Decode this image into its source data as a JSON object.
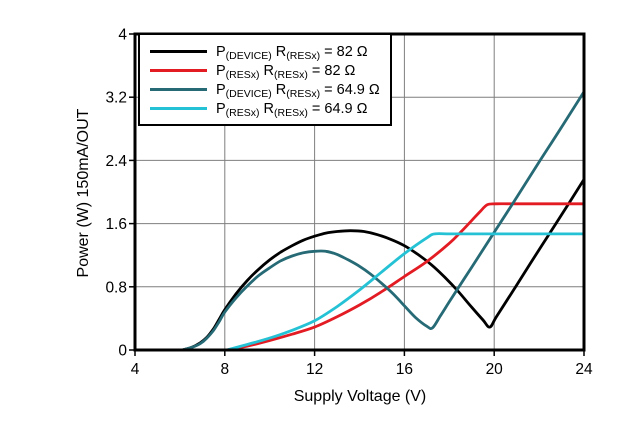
{
  "figure": {
    "background": "#ffffff",
    "frame_color": "#000000",
    "grid_color": "#7f7f7f"
  },
  "chart_data": {
    "type": "line",
    "title": "",
    "xlabel": "Supply Voltage (V)",
    "ylabel": "Power (W) 150mA/OUT",
    "xlim": [
      4,
      24
    ],
    "ylim": [
      0,
      4
    ],
    "x_ticks": [
      4,
      8,
      12,
      16,
      20,
      24
    ],
    "y_ticks": [
      0,
      0.8,
      1.6,
      2.4,
      3.2,
      4
    ],
    "x_tick_labels": [
      "4",
      "8",
      "12",
      "16",
      "20",
      "24"
    ],
    "y_tick_labels": [
      "0",
      "0.8",
      "1.6",
      "2.4",
      "3.2",
      "4"
    ],
    "grid": true,
    "legend_position": "top-left",
    "series": [
      {
        "name": "P(DEVICE) R(RESx) = 82 Ω",
        "color": "#000000",
        "label_parts": [
          {
            "t": "P"
          },
          {
            "s": "(DEVICE)"
          },
          {
            "t": " R"
          },
          {
            "s": "(RESx)"
          },
          {
            "t": " = 82 Ω"
          }
        ],
        "points": [
          [
            6.1,
            0
          ],
          [
            6.5,
            0.03
          ],
          [
            6.9,
            0.09
          ],
          [
            7.2,
            0.16
          ],
          [
            7.5,
            0.27
          ],
          [
            7.75,
            0.39
          ],
          [
            8,
            0.51
          ],
          [
            8.5,
            0.71
          ],
          [
            9,
            0.88
          ],
          [
            9.5,
            1.02
          ],
          [
            10,
            1.14
          ],
          [
            10.5,
            1.24
          ],
          [
            11,
            1.32
          ],
          [
            11.5,
            1.39
          ],
          [
            12,
            1.44
          ],
          [
            12.5,
            1.48
          ],
          [
            13,
            1.5
          ],
          [
            13.6,
            1.51
          ],
          [
            14.2,
            1.5
          ],
          [
            14.8,
            1.46
          ],
          [
            15.4,
            1.4
          ],
          [
            16,
            1.32
          ],
          [
            16.6,
            1.21
          ],
          [
            17.2,
            1.08
          ],
          [
            17.8,
            0.92
          ],
          [
            18.4,
            0.74
          ],
          [
            19,
            0.54
          ],
          [
            19.5,
            0.38
          ],
          [
            19.8,
            0.29
          ],
          [
            20.1,
            0.42
          ],
          [
            21,
            0.82
          ],
          [
            22,
            1.27
          ],
          [
            23,
            1.71
          ],
          [
            24,
            2.16
          ]
        ]
      },
      {
        "name": "P(RESx) R(RESx) = 82 Ω",
        "color": "#e31b23",
        "label_parts": [
          {
            "t": "P"
          },
          {
            "s": "(RESx)"
          },
          {
            "t": " R"
          },
          {
            "s": "(RESx)"
          },
          {
            "t": " = 82 Ω"
          }
        ],
        "points": [
          [
            8.1,
            0
          ],
          [
            9,
            0.05
          ],
          [
            10,
            0.12
          ],
          [
            11,
            0.2
          ],
          [
            12,
            0.29
          ],
          [
            13,
            0.42
          ],
          [
            14,
            0.57
          ],
          [
            15,
            0.74
          ],
          [
            16,
            0.93
          ],
          [
            17,
            1.12
          ],
          [
            18,
            1.35
          ],
          [
            18.5,
            1.49
          ],
          [
            19,
            1.64
          ],
          [
            19.4,
            1.76
          ],
          [
            19.7,
            1.84
          ],
          [
            20.1,
            1.85
          ],
          [
            21,
            1.85
          ],
          [
            24,
            1.85
          ]
        ]
      },
      {
        "name": "P(DEVICE) R(RESx) = 64.9 Ω",
        "color": "#266a76",
        "label_parts": [
          {
            "t": "P"
          },
          {
            "s": "(DEVICE)"
          },
          {
            "t": " R"
          },
          {
            "s": "(RESx)"
          },
          {
            "t": " = 64.9 Ω"
          }
        ],
        "points": [
          [
            6.1,
            0
          ],
          [
            6.5,
            0.03
          ],
          [
            6.9,
            0.08
          ],
          [
            7.2,
            0.15
          ],
          [
            7.5,
            0.25
          ],
          [
            7.75,
            0.36
          ],
          [
            8,
            0.48
          ],
          [
            8.5,
            0.66
          ],
          [
            9,
            0.81
          ],
          [
            9.5,
            0.94
          ],
          [
            10,
            1.04
          ],
          [
            10.5,
            1.13
          ],
          [
            11,
            1.19
          ],
          [
            11.5,
            1.23
          ],
          [
            12,
            1.25
          ],
          [
            12.5,
            1.25
          ],
          [
            13,
            1.21
          ],
          [
            13.5,
            1.14
          ],
          [
            14,
            1.06
          ],
          [
            14.5,
            0.96
          ],
          [
            15,
            0.84
          ],
          [
            15.5,
            0.71
          ],
          [
            16,
            0.56
          ],
          [
            16.5,
            0.41
          ],
          [
            17,
            0.3
          ],
          [
            17.25,
            0.28
          ],
          [
            17.6,
            0.43
          ],
          [
            18,
            0.61
          ],
          [
            19,
            1.05
          ],
          [
            20,
            1.49
          ],
          [
            21,
            1.93
          ],
          [
            22,
            2.38
          ],
          [
            23,
            2.82
          ],
          [
            24,
            3.27
          ]
        ]
      },
      {
        "name": "P(RESx) R(RESx) = 64.9 Ω",
        "color": "#24c2d4",
        "label_parts": [
          {
            "t": "P"
          },
          {
            "s": "(RESx)"
          },
          {
            "t": " R"
          },
          {
            "s": "(RESx)"
          },
          {
            "t": " = 64.9 Ω"
          }
        ],
        "points": [
          [
            8.1,
            0
          ],
          [
            9,
            0.07
          ],
          [
            10,
            0.15
          ],
          [
            11,
            0.25
          ],
          [
            12,
            0.37
          ],
          [
            13,
            0.55
          ],
          [
            14,
            0.76
          ],
          [
            15,
            0.99
          ],
          [
            16,
            1.22
          ],
          [
            17,
            1.42
          ],
          [
            17.35,
            1.47
          ],
          [
            18,
            1.47
          ],
          [
            19,
            1.47
          ],
          [
            21,
            1.47
          ],
          [
            24,
            1.47
          ]
        ]
      }
    ]
  }
}
